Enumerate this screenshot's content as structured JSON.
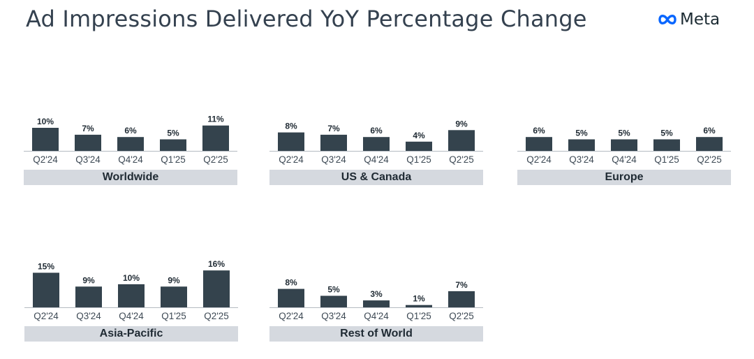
{
  "title": "Ad Impressions Delivered YoY Percentage Change",
  "brand": {
    "name": "Meta",
    "logo_icon": "meta-infinity-icon",
    "logo_color": "#0866ff"
  },
  "colors": {
    "bar": "#34434d",
    "label_band": "#d5d9df",
    "title": "#34414f"
  },
  "chart_data": [
    {
      "type": "bar",
      "title": "Worldwide",
      "categories": [
        "Q2'24",
        "Q3'24",
        "Q4'24",
        "Q1'25",
        "Q2'25"
      ],
      "values": [
        10,
        7,
        6,
        5,
        11
      ],
      "value_labels": [
        "10%",
        "7%",
        "6%",
        "5%",
        "11%"
      ],
      "ylim": [
        0,
        16
      ]
    },
    {
      "type": "bar",
      "title": "US & Canada",
      "categories": [
        "Q2'24",
        "Q3'24",
        "Q4'24",
        "Q1'25",
        "Q2'25"
      ],
      "values": [
        8,
        7,
        6,
        4,
        9
      ],
      "value_labels": [
        "8%",
        "7%",
        "6%",
        "4%",
        "9%"
      ],
      "ylim": [
        0,
        16
      ]
    },
    {
      "type": "bar",
      "title": "Europe",
      "categories": [
        "Q2'24",
        "Q3'24",
        "Q4'24",
        "Q1'25",
        "Q2'25"
      ],
      "values": [
        6,
        5,
        5,
        5,
        6
      ],
      "value_labels": [
        "6%",
        "5%",
        "5%",
        "5%",
        "6%"
      ],
      "ylim": [
        0,
        16
      ]
    },
    {
      "type": "bar",
      "title": "Asia-Pacific",
      "categories": [
        "Q2'24",
        "Q3'24",
        "Q4'24",
        "Q1'25",
        "Q2'25"
      ],
      "values": [
        15,
        9,
        10,
        9,
        16
      ],
      "value_labels": [
        "15%",
        "9%",
        "10%",
        "9%",
        "16%"
      ],
      "ylim": [
        0,
        16
      ]
    },
    {
      "type": "bar",
      "title": "Rest of World",
      "categories": [
        "Q2'24",
        "Q3'24",
        "Q4'24",
        "Q1'25",
        "Q2'25"
      ],
      "values": [
        8,
        5,
        3,
        1,
        7
      ],
      "value_labels": [
        "8%",
        "5%",
        "3%",
        "1%",
        "7%"
      ],
      "ylim": [
        0,
        16
      ]
    }
  ]
}
